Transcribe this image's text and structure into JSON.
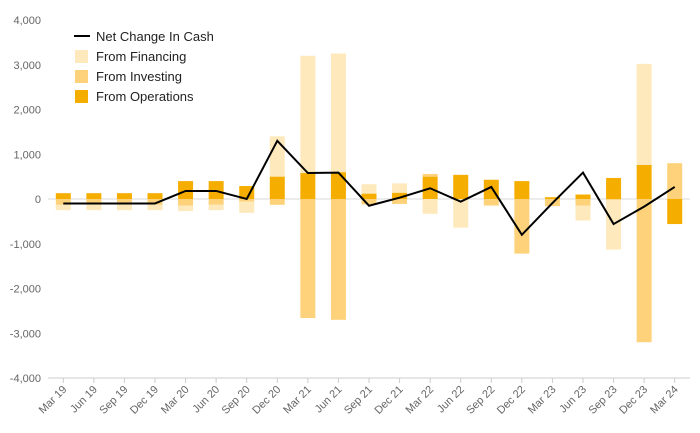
{
  "chart_data": {
    "type": "bar",
    "stacked": true,
    "categories": [
      "Mar 19",
      "Jun 19",
      "Sep 19",
      "Dec 19",
      "Mar 20",
      "Jun 20",
      "Sep 20",
      "Dec 20",
      "Mar 21",
      "Jun 21",
      "Sep 21",
      "Dec 21",
      "Mar 22",
      "Jun 22",
      "Sep 22",
      "Dec 22",
      "Mar 23",
      "Jun 23",
      "Sep 23",
      "Dec 23",
      "Mar 24"
    ],
    "ylim": [
      -4000,
      4000
    ],
    "yticks": [
      4000,
      3000,
      2000,
      1000,
      0,
      -1000,
      -2000,
      -3000,
      -4000
    ],
    "ytick_labels": [
      "4,000",
      "3,000",
      "2,000",
      "1,000",
      "0",
      "-1,000",
      "-2,000",
      "-3,000",
      "-4,000"
    ],
    "grid": "horizontal-zero-only",
    "legend_position": "top-left",
    "series": [
      {
        "name": "From Operations",
        "kind": "bar",
        "color": "#f5ae00",
        "values": [
          130,
          130,
          130,
          130,
          400,
          400,
          290,
          500,
          580,
          600,
          120,
          140,
          500,
          540,
          430,
          400,
          40,
          100,
          470,
          760,
          -560
        ]
      },
      {
        "name": "From Investing",
        "kind": "bar",
        "color": "#fdd27a",
        "values": [
          -130,
          -130,
          -130,
          -130,
          -150,
          -130,
          -60,
          -130,
          -2660,
          -2700,
          -120,
          -110,
          60,
          0,
          -140,
          -1220,
          -160,
          -150,
          -20,
          -3200,
          800
        ]
      },
      {
        "name": "From Financing",
        "kind": "bar",
        "color": "#fde9bb",
        "values": [
          -120,
          -120,
          -120,
          -120,
          -120,
          -120,
          -250,
          900,
          2620,
          2650,
          210,
          210,
          -330,
          -640,
          -20,
          0,
          0,
          -330,
          -1110,
          2260,
          0
        ]
      },
      {
        "name": "Net Change In Cash",
        "kind": "line",
        "color": "#000000",
        "values": [
          -100,
          -100,
          -100,
          -100,
          180,
          180,
          0,
          1300,
          580,
          590,
          -150,
          30,
          240,
          -60,
          270,
          -800,
          -90,
          590,
          -560,
          -170,
          270
        ]
      }
    ]
  }
}
